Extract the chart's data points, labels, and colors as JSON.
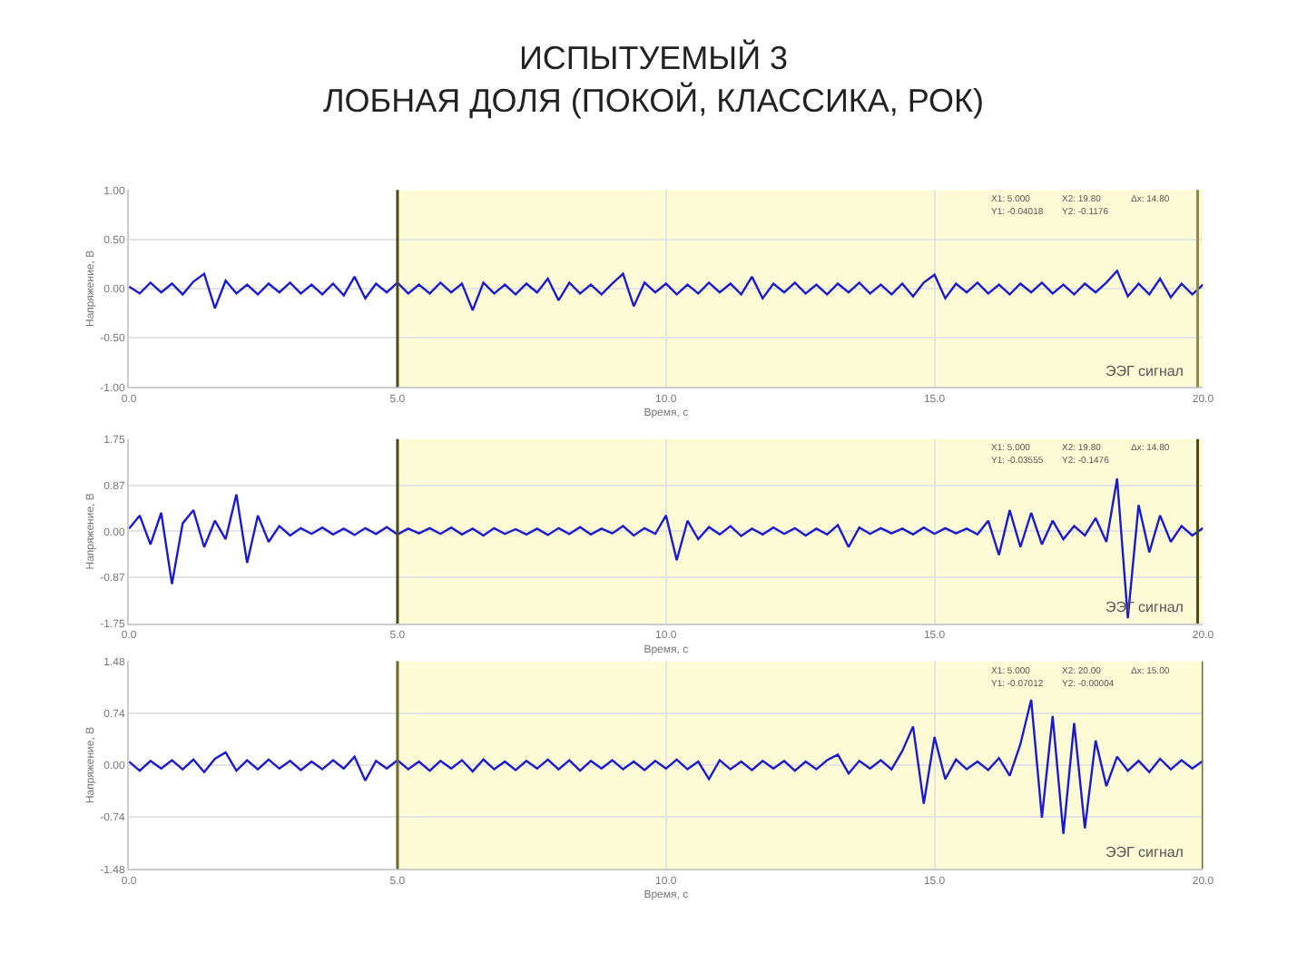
{
  "chart_data": [
    {
      "type": "line",
      "title": "ИСПЫТУЕМЫЙ 3\nЛОБНАЯ ДОЛЯ (ПОКОЙ, КЛАССИКА, РОК)",
      "xlabel": "Время, с",
      "ylabel": "Напряжение, В",
      "x": [
        0,
        0.2,
        0.4,
        0.6,
        0.8,
        1,
        1.2,
        1.4,
        1.6,
        1.8,
        2,
        2.2,
        2.4,
        2.6,
        2.8,
        3,
        3.2,
        3.4,
        3.6,
        3.8,
        4,
        4.2,
        4.4,
        4.6,
        4.8,
        5,
        5.2,
        5.4,
        5.6,
        5.8,
        6,
        6.2,
        6.4,
        6.6,
        6.8,
        7,
        7.2,
        7.4,
        7.6,
        7.8,
        8,
        8.2,
        8.4,
        8.6,
        8.8,
        9,
        9.2,
        9.4,
        9.6,
        9.8,
        10,
        10.2,
        10.4,
        10.6,
        10.8,
        11,
        11.2,
        11.4,
        11.6,
        11.8,
        12,
        12.2,
        12.4,
        12.6,
        12.8,
        13,
        13.2,
        13.4,
        13.6,
        13.8,
        14,
        14.2,
        14.4,
        14.6,
        14.8,
        15,
        15.2,
        15.4,
        15.6,
        15.8,
        16,
        16.2,
        16.4,
        16.6,
        16.8,
        17,
        17.2,
        17.4,
        17.6,
        17.8,
        18,
        18.2,
        18.4,
        18.6,
        18.8,
        19,
        19.2,
        19.4,
        19.6,
        19.8,
        20
      ],
      "series": [
        {
          "color": "#1a1ad0",
          "values": [
            0.02,
            -0.05,
            0.06,
            -0.04,
            0.05,
            -0.06,
            0.07,
            0.15,
            -0.2,
            0.08,
            -0.05,
            0.04,
            -0.06,
            0.05,
            -0.04,
            0.06,
            -0.05,
            0.04,
            -0.06,
            0.05,
            -0.07,
            0.12,
            -0.1,
            0.05,
            -0.04,
            0.06,
            -0.05,
            0.04,
            -0.05,
            0.06,
            -0.04,
            0.05,
            -0.22,
            0.06,
            -0.05,
            0.04,
            -0.06,
            0.05,
            -0.04,
            0.1,
            -0.12,
            0.06,
            -0.05,
            0.04,
            -0.06,
            0.05,
            0.15,
            -0.18,
            0.06,
            -0.04,
            0.05,
            -0.06,
            0.04,
            -0.05,
            0.06,
            -0.04,
            0.05,
            -0.06,
            0.12,
            -0.1,
            0.05,
            -0.04,
            0.06,
            -0.05,
            0.04,
            -0.06,
            0.05,
            -0.04,
            0.06,
            -0.05,
            0.04,
            -0.06,
            0.05,
            -0.08,
            0.06,
            0.14,
            -0.1,
            0.05,
            -0.04,
            0.06,
            -0.05,
            0.04,
            -0.06,
            0.05,
            -0.04,
            0.06,
            -0.05,
            0.04,
            -0.06,
            0.05,
            -0.04,
            0.06,
            0.18,
            -0.08,
            0.05,
            -0.06,
            0.1,
            -0.09,
            0.05,
            -0.06,
            0.04
          ]
        }
      ],
      "xlim": [
        0,
        20
      ],
      "xticks": [
        {
          "value": 0,
          "label": "0.0"
        },
        {
          "value": 5,
          "label": "5.0"
        },
        {
          "value": 10,
          "label": "10.0"
        },
        {
          "value": 15,
          "label": "15.0"
        },
        {
          "value": 20,
          "label": "20.0"
        }
      ],
      "ylim": [
        -1,
        1
      ],
      "yticks": [
        {
          "value": -1,
          "label": "-1.00"
        },
        {
          "value": -0.5,
          "label": "-0.50"
        },
        {
          "value": 0,
          "label": "0.00"
        },
        {
          "value": 0.5,
          "label": "0.50"
        },
        {
          "value": 1,
          "label": "1.00"
        }
      ],
      "grid": true,
      "bands": [
        {
          "axis": "x",
          "from": 5,
          "to": 20,
          "color": "#fdfbd6"
        }
      ],
      "ref_lines": [
        {
          "axis": "x",
          "value": 5,
          "color": "#4a4a1a"
        },
        {
          "axis": "x",
          "value": 19.9,
          "color": "#8a8a50"
        }
      ],
      "annotations": [
        "ЭЭГ сигнал",
        "X1: 5.000",
        "Y1: -0.04018",
        "X2: 19.80",
        "Y2: -0.1176",
        "Δx: 14.80"
      ]
    },
    {
      "type": "line",
      "xlabel": "Время, с",
      "ylabel": "Напряжение, В",
      "x": [
        0,
        0.2,
        0.4,
        0.6,
        0.8,
        1,
        1.2,
        1.4,
        1.6,
        1.8,
        2,
        2.2,
        2.4,
        2.6,
        2.8,
        3,
        3.2,
        3.4,
        3.6,
        3.8,
        4,
        4.2,
        4.4,
        4.6,
        4.8,
        5,
        5.2,
        5.4,
        5.6,
        5.8,
        6,
        6.2,
        6.4,
        6.6,
        6.8,
        7,
        7.2,
        7.4,
        7.6,
        7.8,
        8,
        8.2,
        8.4,
        8.6,
        8.8,
        9,
        9.2,
        9.4,
        9.6,
        9.8,
        10,
        10.2,
        10.4,
        10.6,
        10.8,
        11,
        11.2,
        11.4,
        11.6,
        11.8,
        12,
        12.2,
        12.4,
        12.6,
        12.8,
        13,
        13.2,
        13.4,
        13.6,
        13.8,
        14,
        14.2,
        14.4,
        14.6,
        14.8,
        15,
        15.2,
        15.4,
        15.6,
        15.8,
        16,
        16.2,
        16.4,
        16.6,
        16.8,
        17,
        17.2,
        17.4,
        17.6,
        17.8,
        18,
        18.2,
        18.4,
        18.6,
        18.8,
        19,
        19.2,
        19.4,
        19.6,
        19.8,
        20
      ],
      "series": [
        {
          "color": "#1a1ad0",
          "values": [
            0.05,
            0.3,
            -0.25,
            0.35,
            -1.0,
            0.15,
            0.4,
            -0.3,
            0.2,
            -0.15,
            0.7,
            -0.6,
            0.3,
            -0.2,
            0.1,
            -0.08,
            0.06,
            -0.05,
            0.07,
            -0.06,
            0.05,
            -0.07,
            0.06,
            -0.05,
            0.08,
            -0.06,
            0.05,
            -0.04,
            0.06,
            -0.05,
            0.07,
            -0.06,
            0.05,
            -0.08,
            0.06,
            -0.05,
            0.04,
            -0.06,
            0.05,
            -0.07,
            0.06,
            -0.05,
            0.08,
            -0.06,
            0.05,
            -0.04,
            0.1,
            -0.08,
            0.06,
            -0.05,
            0.3,
            -0.55,
            0.2,
            -0.15,
            0.08,
            -0.06,
            0.1,
            -0.09,
            0.05,
            -0.06,
            0.07,
            -0.05,
            0.06,
            -0.08,
            0.05,
            -0.06,
            0.12,
            -0.3,
            0.07,
            -0.05,
            0.06,
            -0.04,
            0.05,
            -0.06,
            0.07,
            -0.05,
            0.06,
            -0.04,
            0.05,
            -0.06,
            0.2,
            -0.45,
            0.4,
            -0.3,
            0.35,
            -0.25,
            0.2,
            -0.15,
            0.1,
            -0.08,
            0.25,
            -0.2,
            1.0,
            -1.65,
            0.5,
            -0.4,
            0.3,
            -0.2,
            0.1,
            -0.08,
            0.06
          ]
        }
      ],
      "xlim": [
        0,
        20
      ],
      "xticks": [
        {
          "value": 0,
          "label": "0.0"
        },
        {
          "value": 5,
          "label": "5.0"
        },
        {
          "value": 10,
          "label": "10.0"
        },
        {
          "value": 15,
          "label": "15.0"
        },
        {
          "value": 20,
          "label": "20.0"
        }
      ],
      "ylim": [
        -1.75,
        1.75
      ],
      "yticks": [
        {
          "value": -1.75,
          "label": "-1.75"
        },
        {
          "value": -0.87,
          "label": "-0.87"
        },
        {
          "value": 0,
          "label": "0.00"
        },
        {
          "value": 0.87,
          "label": "0.87"
        },
        {
          "value": 1.75,
          "label": "1.75"
        }
      ],
      "grid": true,
      "bands": [
        {
          "axis": "x",
          "from": 5,
          "to": 20,
          "color": "#fdfbd6"
        }
      ],
      "ref_lines": [
        {
          "axis": "x",
          "value": 5,
          "color": "#4a4a1a"
        },
        {
          "axis": "x",
          "value": 19.9,
          "color": "#4a4a1a"
        }
      ],
      "annotations": [
        "ЭЭГ сигнал",
        "X1: 5.000",
        "Y1: -0.03555",
        "X2: 19.80",
        "Y2: -0.1476",
        "Δx: 14.80"
      ]
    },
    {
      "type": "line",
      "xlabel": "Время, с",
      "ylabel": "Напряжение, В",
      "x": [
        0,
        0.2,
        0.4,
        0.6,
        0.8,
        1,
        1.2,
        1.4,
        1.6,
        1.8,
        2,
        2.2,
        2.4,
        2.6,
        2.8,
        3,
        3.2,
        3.4,
        3.6,
        3.8,
        4,
        4.2,
        4.4,
        4.6,
        4.8,
        5,
        5.2,
        5.4,
        5.6,
        5.8,
        6,
        6.2,
        6.4,
        6.6,
        6.8,
        7,
        7.2,
        7.4,
        7.6,
        7.8,
        8,
        8.2,
        8.4,
        8.6,
        8.8,
        9,
        9.2,
        9.4,
        9.6,
        9.8,
        10,
        10.2,
        10.4,
        10.6,
        10.8,
        11,
        11.2,
        11.4,
        11.6,
        11.8,
        12,
        12.2,
        12.4,
        12.6,
        12.8,
        13,
        13.2,
        13.4,
        13.6,
        13.8,
        14,
        14.2,
        14.4,
        14.6,
        14.8,
        15,
        15.2,
        15.4,
        15.6,
        15.8,
        16,
        16.2,
        16.4,
        16.6,
        16.8,
        17,
        17.2,
        17.4,
        17.6,
        17.8,
        18,
        18.2,
        18.4,
        18.6,
        18.8,
        19,
        19.2,
        19.4,
        19.6,
        19.8,
        20
      ],
      "series": [
        {
          "color": "#1a1ad0",
          "values": [
            0.05,
            -0.08,
            0.06,
            -0.05,
            0.07,
            -0.06,
            0.08,
            -0.1,
            0.09,
            0.18,
            -0.08,
            0.07,
            -0.06,
            0.08,
            -0.05,
            0.06,
            -0.07,
            0.05,
            -0.06,
            0.07,
            -0.05,
            0.12,
            -0.22,
            0.06,
            -0.05,
            0.07,
            -0.06,
            0.05,
            -0.08,
            0.06,
            -0.05,
            0.07,
            -0.09,
            0.08,
            -0.06,
            0.05,
            -0.07,
            0.06,
            -0.05,
            0.08,
            -0.06,
            0.07,
            -0.08,
            0.06,
            -0.05,
            0.07,
            -0.06,
            0.05,
            -0.07,
            0.06,
            -0.05,
            0.08,
            -0.06,
            0.05,
            -0.2,
            0.07,
            -0.06,
            0.05,
            -0.07,
            0.06,
            -0.05,
            0.06,
            -0.08,
            0.05,
            -0.06,
            0.07,
            0.15,
            -0.12,
            0.06,
            -0.05,
            0.07,
            -0.06,
            0.2,
            0.55,
            -0.55,
            0.4,
            -0.2,
            0.08,
            -0.06,
            0.05,
            -0.07,
            0.1,
            -0.15,
            0.3,
            0.93,
            -0.75,
            0.7,
            -0.98,
            0.6,
            -0.9,
            0.35,
            -0.3,
            0.12,
            -0.08,
            0.06,
            -0.1,
            0.09,
            -0.06,
            0.07,
            -0.05,
            0.06
          ]
        }
      ],
      "xlim": [
        0,
        20
      ],
      "xticks": [
        {
          "value": 0,
          "label": "0.0"
        },
        {
          "value": 5,
          "label": "5.0"
        },
        {
          "value": 10,
          "label": "10.0"
        },
        {
          "value": 15,
          "label": "15.0"
        },
        {
          "value": 20,
          "label": "20.0"
        }
      ],
      "ylim": [
        -1.48,
        1.48
      ],
      "yticks": [
        {
          "value": -1.48,
          "label": "-1.48"
        },
        {
          "value": -0.74,
          "label": "-0.74"
        },
        {
          "value": 0,
          "label": "0.00"
        },
        {
          "value": 0.74,
          "label": "0.74"
        },
        {
          "value": 1.48,
          "label": "1.48"
        }
      ],
      "grid": true,
      "bands": [
        {
          "axis": "x",
          "from": 5,
          "to": 20,
          "color": "#fdfbd6"
        }
      ],
      "ref_lines": [
        {
          "axis": "x",
          "value": 5,
          "color": "#6a6a2a"
        },
        {
          "axis": "x",
          "value": 20,
          "color": "#6a6a2a"
        }
      ],
      "annotations": [
        "ЭЭГ сигнал",
        "X1: 5.000",
        "Y1: -0.07012",
        "X2: 20.00",
        "Y2: -0.00004",
        "Δx: 15.00"
      ]
    }
  ]
}
